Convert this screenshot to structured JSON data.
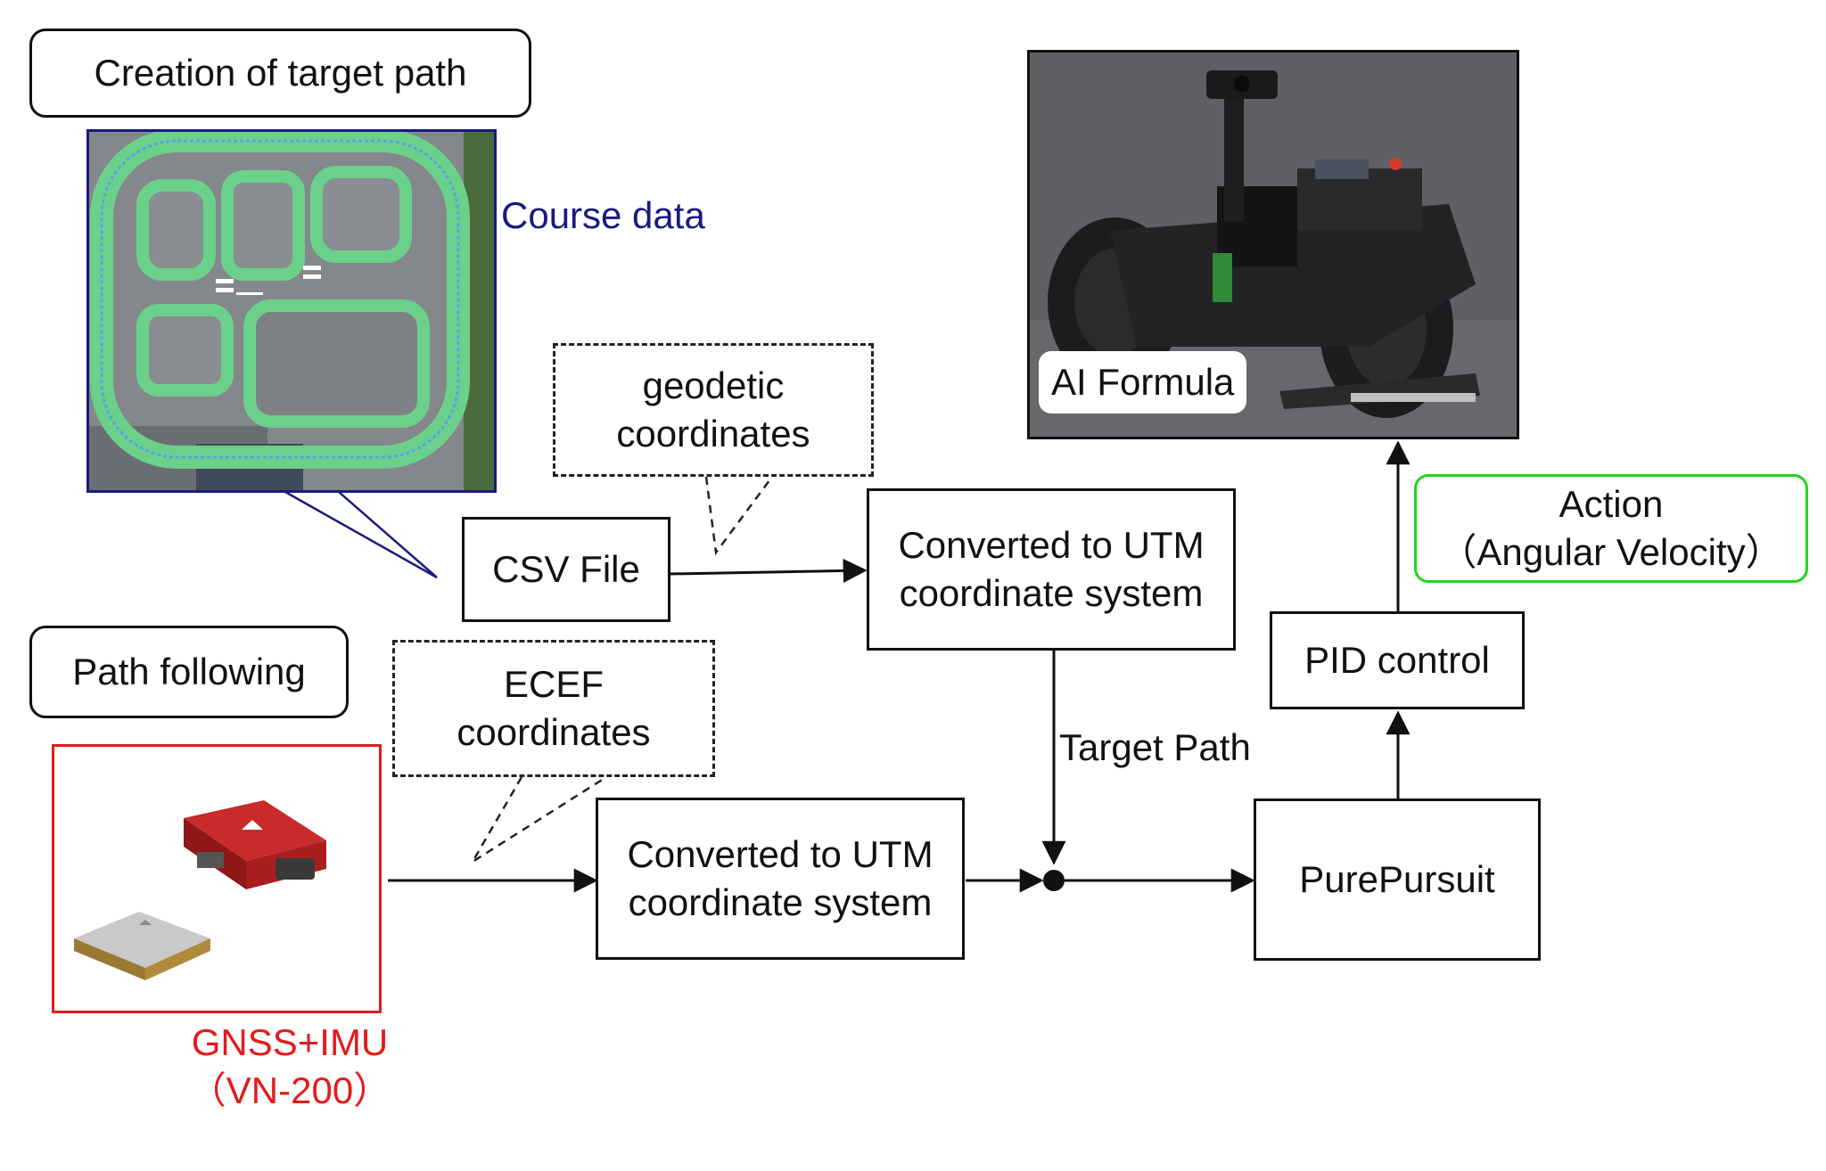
{
  "section_top": "Creation of target path",
  "section_bottom": "Path following",
  "course_label": "Course data",
  "geodetic_line1": "geodetic",
  "geodetic_line2": "coordinates",
  "csv_label": "CSV File",
  "utm_top_line1": "Converted to UTM",
  "utm_top_line2": "coordinate system",
  "ecef_line1": "ECEF",
  "ecef_line2": "coordinates",
  "utm_bottom_line1": "Converted to UTM",
  "utm_bottom_line2": "coordinate system",
  "target_path_label": "Target Path",
  "purepursuit_label": "PurePursuit",
  "pid_label": "PID control",
  "action_line1": "Action",
  "action_line2": "（Angular Velocity）",
  "robot_label": "AI Formula",
  "gnss_line1": "GNSS+IMU",
  "gnss_line2": "（VN-200）",
  "colors": {
    "course_blue": "#1a1a80",
    "gnss_red": "#e31b1b",
    "action_green": "#22d422",
    "track_green": "#6bd08a"
  }
}
